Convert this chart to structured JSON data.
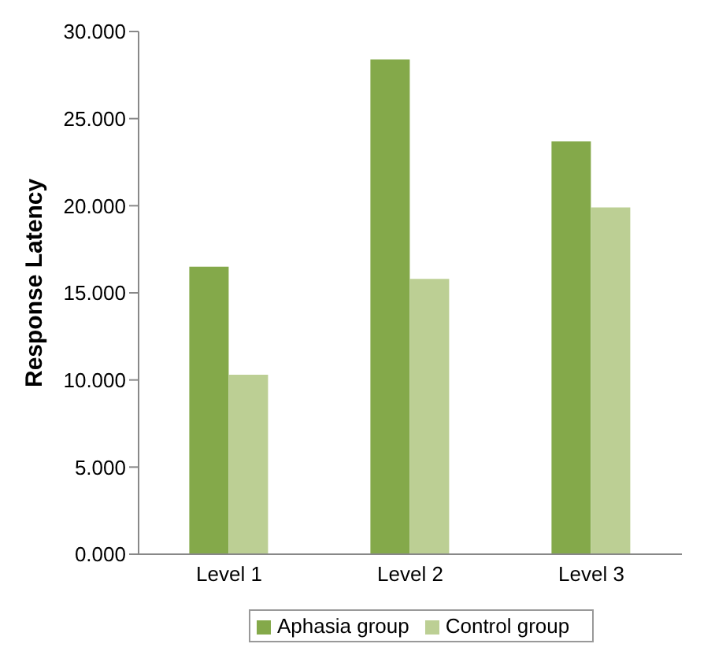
{
  "chart_data": {
    "type": "bar",
    "ylabel": "Response Latency",
    "categories": [
      "Level 1",
      "Level 2",
      "Level 3"
    ],
    "series": [
      {
        "name": "Aphasia group",
        "color": "#84a94a",
        "values": [
          16.5,
          28.4,
          23.7
        ]
      },
      {
        "name": "Control group",
        "color": "#bccf94",
        "values": [
          10.3,
          15.8,
          19.9
        ]
      }
    ],
    "ylim": [
      0,
      30
    ],
    "yticks": [
      {
        "value": 0,
        "label": "0.000"
      },
      {
        "value": 5,
        "label": "5.000"
      },
      {
        "value": 10,
        "label": "10.000"
      },
      {
        "value": 15,
        "label": "15.000"
      },
      {
        "value": 20,
        "label": "20.000"
      },
      {
        "value": 25,
        "label": "25.000"
      },
      {
        "value": 30,
        "label": "30.000"
      }
    ],
    "grid": false,
    "legend": "bottom"
  }
}
